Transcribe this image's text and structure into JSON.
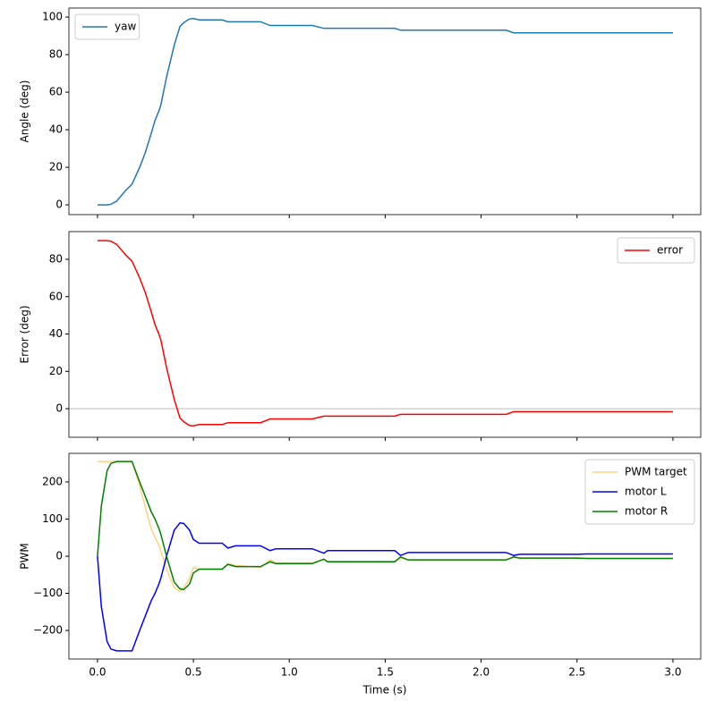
{
  "chart_data": [
    {
      "type": "line",
      "ylabel": "Angle (deg)",
      "legend": "upper left",
      "x": [
        0,
        0.02,
        0.05,
        0.07,
        0.1,
        0.15,
        0.18,
        0.22,
        0.25,
        0.28,
        0.3,
        0.32,
        0.33,
        0.36,
        0.4,
        0.43,
        0.45,
        0.48,
        0.5,
        0.53,
        0.65,
        0.68,
        0.72,
        0.85,
        0.9,
        0.93,
        1.12,
        1.18,
        1.2,
        1.55,
        1.58,
        1.62,
        2.13,
        2.17,
        2.2,
        2.5,
        2.55,
        3.0
      ],
      "series": [
        {
          "name": "yaw",
          "color": "#1f77b4",
          "values": [
            0,
            0,
            0,
            0.3,
            2,
            8,
            11,
            20,
            28,
            38,
            45,
            50,
            53,
            68,
            85,
            95,
            97,
            99,
            99.2,
            98.5,
            98.5,
            97.5,
            97.5,
            97.5,
            95.5,
            95.5,
            95.5,
            94,
            94,
            94,
            93,
            93,
            93,
            91.6,
            91.6,
            91.6,
            91.6,
            91.6
          ]
        }
      ],
      "xlim": [
        -0.149,
        3.145
      ],
      "ylim": [
        -5.2,
        104.8
      ],
      "yticks": [
        0,
        20,
        40,
        60,
        80,
        100
      ]
    },
    {
      "type": "line",
      "ylabel": "Error (deg)",
      "legend": "upper right",
      "hline": 0,
      "x": [
        0,
        0.02,
        0.05,
        0.07,
        0.1,
        0.15,
        0.18,
        0.22,
        0.25,
        0.28,
        0.3,
        0.32,
        0.33,
        0.36,
        0.4,
        0.43,
        0.45,
        0.48,
        0.5,
        0.53,
        0.65,
        0.68,
        0.72,
        0.85,
        0.9,
        0.93,
        1.12,
        1.18,
        1.2,
        1.55,
        1.58,
        1.62,
        2.13,
        2.17,
        2.2,
        2.5,
        2.55,
        3.0
      ],
      "series": [
        {
          "name": "error",
          "color": "#ff0000",
          "values": [
            90,
            90,
            90,
            89.7,
            88,
            82,
            79,
            70,
            62,
            52,
            45,
            40,
            37,
            22,
            5,
            -5,
            -7,
            -9,
            -9.2,
            -8.5,
            -8.5,
            -7.5,
            -7.5,
            -7.5,
            -5.5,
            -5.5,
            -5.5,
            -4,
            -4,
            -4,
            -3,
            -3,
            -3,
            -1.6,
            -1.6,
            -1.6,
            -1.6,
            -1.6
          ]
        }
      ],
      "xlim": [
        -0.149,
        3.145
      ],
      "ylim": [
        -15.3,
        94.85
      ],
      "yticks": [
        0,
        20,
        40,
        60,
        80
      ]
    },
    {
      "type": "line",
      "ylabel": "PWM",
      "xlabel": "Time (s)",
      "legend": "upper right",
      "x": [
        0,
        0.02,
        0.05,
        0.07,
        0.1,
        0.15,
        0.18,
        0.22,
        0.25,
        0.28,
        0.3,
        0.32,
        0.33,
        0.36,
        0.4,
        0.43,
        0.45,
        0.48,
        0.5,
        0.53,
        0.65,
        0.68,
        0.72,
        0.85,
        0.9,
        0.93,
        1.12,
        1.18,
        1.2,
        1.55,
        1.58,
        1.62,
        2.13,
        2.17,
        2.2,
        2.5,
        2.55,
        3.0
      ],
      "series": [
        {
          "name": "PWM target",
          "color": "#ffd280",
          "values": [
            255,
            255,
            255,
            255,
            255,
            255,
            255,
            190,
            130,
            75,
            50,
            30,
            15,
            -35,
            -85,
            -95,
            -85,
            -60,
            -30,
            -35,
            -35,
            -20,
            -25,
            -30,
            -10,
            -18,
            -18,
            -8,
            -14,
            -14,
            -5,
            -10,
            -10,
            -2,
            -5,
            -5,
            -6,
            -6
          ]
        },
        {
          "name": "motor L",
          "color": "#0000ff",
          "values": [
            0,
            -135,
            -230,
            -250,
            -255,
            -255,
            -255,
            -200,
            -160,
            -120,
            -100,
            -75,
            -60,
            0,
            70,
            90,
            88,
            70,
            45,
            35,
            35,
            22,
            28,
            28,
            15,
            20,
            20,
            8,
            15,
            15,
            2,
            10,
            10,
            2,
            5,
            5,
            6,
            6
          ]
        },
        {
          "name": "motor R",
          "color": "#008000",
          "values": [
            0,
            135,
            230,
            250,
            255,
            255,
            255,
            200,
            160,
            120,
            100,
            75,
            60,
            0,
            -70,
            -88,
            -90,
            -75,
            -45,
            -35,
            -35,
            -22,
            -28,
            -28,
            -15,
            -20,
            -20,
            -8,
            -15,
            -15,
            -2,
            -10,
            -10,
            -2,
            -5,
            -5,
            -6,
            -6
          ]
        }
      ],
      "xlim": [
        -0.149,
        3.145
      ],
      "ylim": [
        -277,
        277
      ],
      "yticks": [
        {
          "value": -200,
          "label": "−200"
        },
        {
          "value": -100,
          "label": "−100"
        },
        0,
        100,
        200
      ],
      "xticks": [
        {
          "value": 0,
          "label": "0.0"
        },
        {
          "value": 0.5,
          "label": "0.5"
        },
        {
          "value": 1,
          "label": "1.0"
        },
        {
          "value": 1.5,
          "label": "1.5"
        },
        {
          "value": 2,
          "label": "2.0"
        },
        {
          "value": 2.5,
          "label": "2.5"
        },
        {
          "value": 3,
          "label": "3.0"
        }
      ]
    }
  ]
}
